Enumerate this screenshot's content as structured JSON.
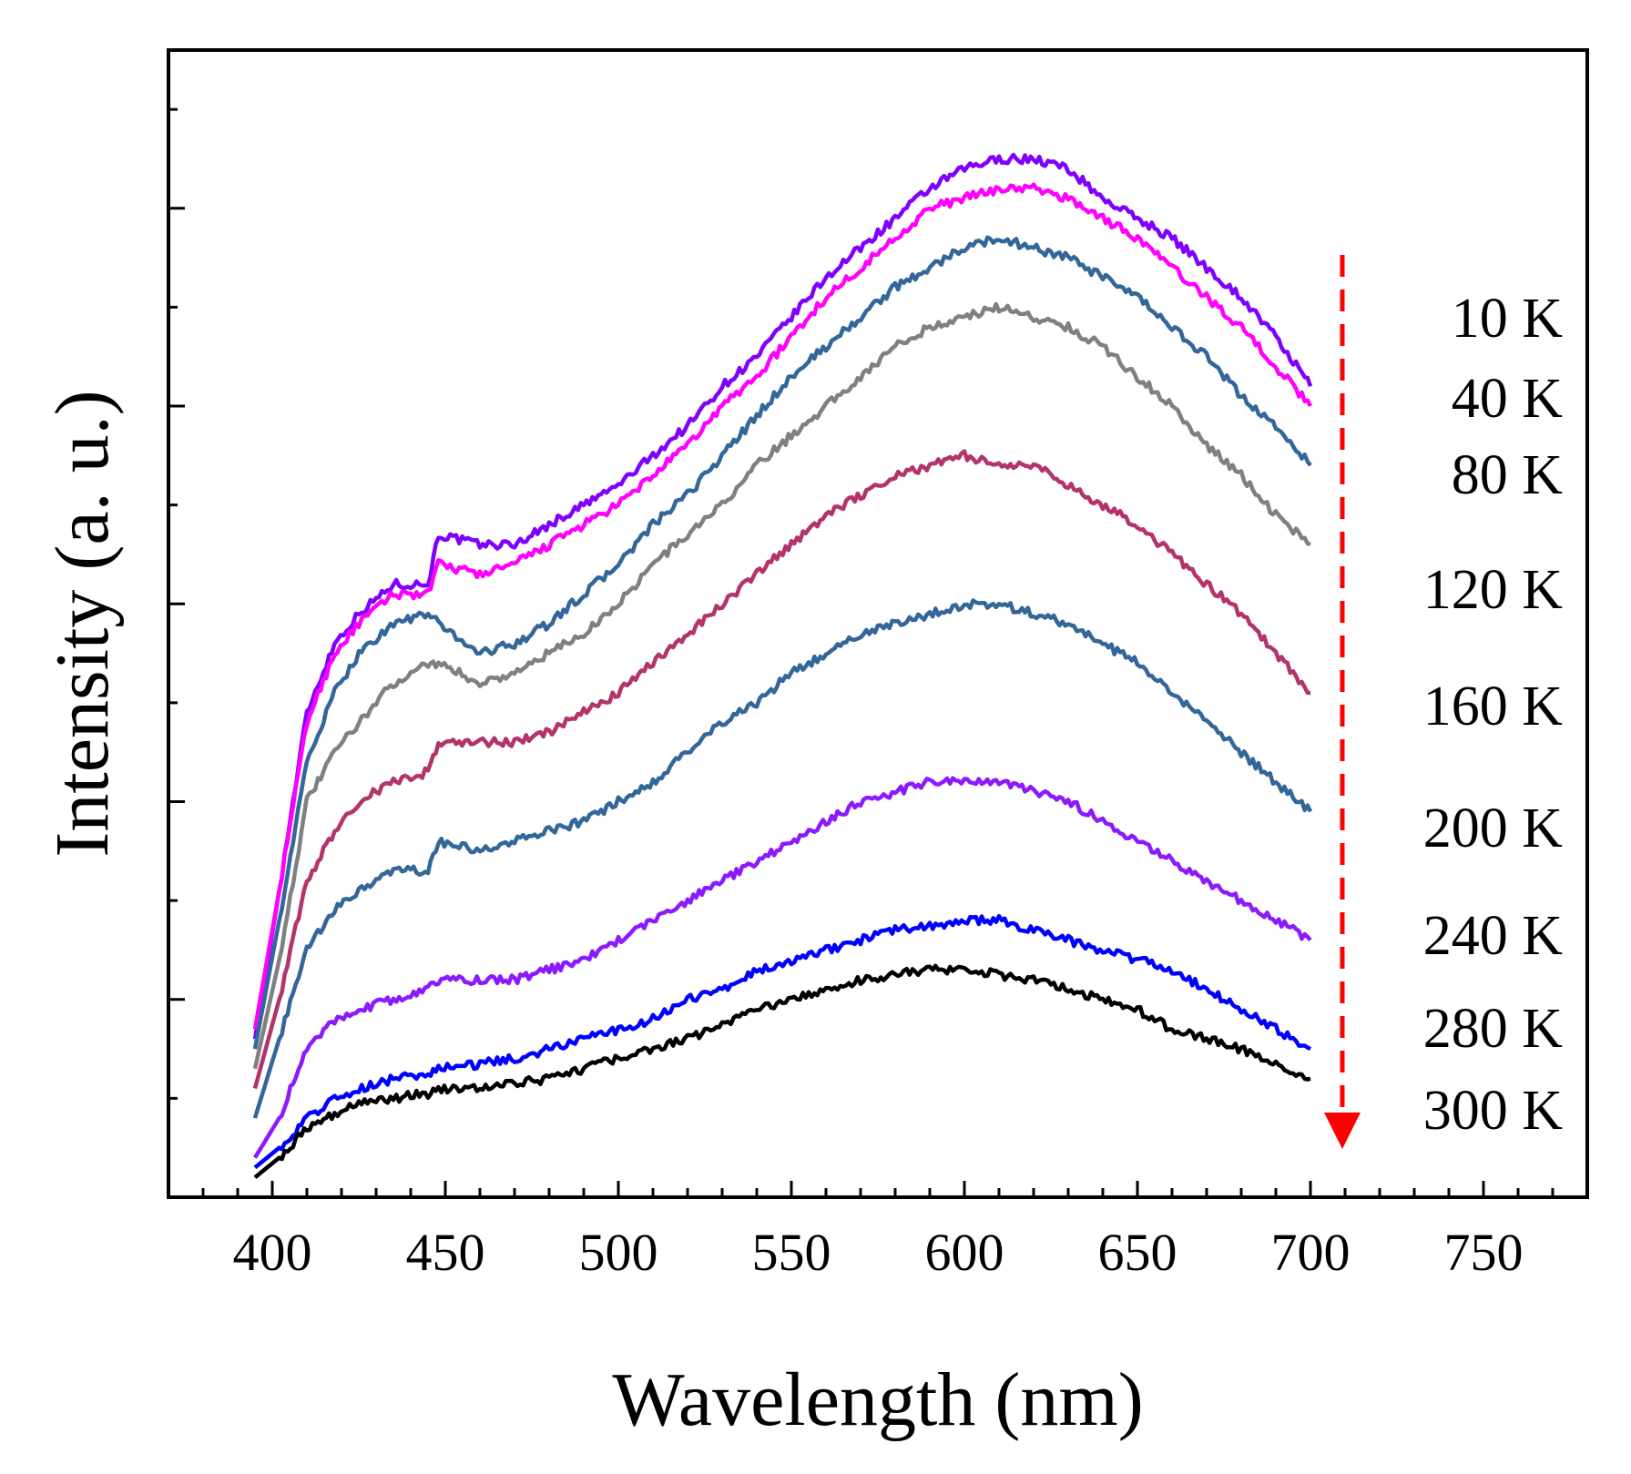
{
  "chart_data": {
    "type": "line",
    "title": "",
    "xlabel": "Wavelength (nm)",
    "ylabel": "Intensity (a. u.)",
    "xlim": [
      370,
      780
    ],
    "ylim": [
      0,
      11.6
    ],
    "x_ticks": [
      400,
      450,
      500,
      550,
      600,
      650,
      700,
      750
    ],
    "x_tick_labels": [
      "400",
      "450",
      "500",
      "550",
      "600",
      "650",
      "700",
      "750"
    ],
    "y_ticks": [
      2,
      4,
      6,
      8,
      10
    ],
    "y_minor_ticks": [
      1,
      3,
      5,
      7,
      9,
      11
    ],
    "y_tick_labels_shown": false,
    "grid": false,
    "legend": "inline labels at right, ordered top to bottom",
    "annotation": {
      "type": "dashed-arrow",
      "color": "#ff0000",
      "direction": "down",
      "meaning": "increasing temperature"
    },
    "series": [
      {
        "name": "10 K",
        "color": "#7f00ff",
        "x": [
          395,
          402,
          410,
          418,
          425,
          435,
          445,
          448,
          460,
          470,
          480,
          490,
          500,
          510,
          520,
          530,
          540,
          550,
          560,
          570,
          580,
          590,
          600,
          610,
          620,
          630,
          640,
          650,
          660,
          670,
          680,
          690,
          700
        ],
        "values": [
          1.6,
          3.1,
          4.9,
          5.6,
          5.9,
          6.2,
          6.2,
          6.7,
          6.6,
          6.6,
          6.8,
          7.0,
          7.2,
          7.5,
          7.8,
          8.2,
          8.5,
          8.9,
          9.3,
          9.6,
          9.9,
          10.2,
          10.4,
          10.5,
          10.5,
          10.4,
          10.1,
          9.9,
          9.7,
          9.4,
          9.1,
          8.7,
          8.2
        ]
      },
      {
        "name": "40 K",
        "color": "#ff00ff",
        "x": [
          395,
          402,
          410,
          418,
          425,
          435,
          445,
          448,
          460,
          470,
          480,
          490,
          500,
          510,
          520,
          530,
          540,
          550,
          560,
          570,
          580,
          590,
          600,
          610,
          620,
          630,
          640,
          650,
          660,
          670,
          680,
          690,
          700
        ],
        "values": [
          1.7,
          3.1,
          4.8,
          5.5,
          5.8,
          6.1,
          6.1,
          6.4,
          6.3,
          6.4,
          6.6,
          6.8,
          7.0,
          7.3,
          7.6,
          8.0,
          8.3,
          8.7,
          9.1,
          9.4,
          9.7,
          10.0,
          10.1,
          10.2,
          10.2,
          10.1,
          9.9,
          9.7,
          9.4,
          9.1,
          8.8,
          8.4,
          8.0
        ]
      },
      {
        "name": "80 K",
        "color": "#336699",
        "x": [
          395,
          402,
          410,
          418,
          425,
          435,
          445,
          448,
          460,
          470,
          480,
          490,
          500,
          510,
          520,
          530,
          540,
          550,
          560,
          570,
          580,
          590,
          600,
          610,
          620,
          630,
          640,
          650,
          660,
          670,
          680,
          690,
          700
        ],
        "values": [
          1.5,
          2.8,
          4.4,
          5.1,
          5.5,
          5.8,
          5.9,
          5.8,
          5.5,
          5.6,
          5.8,
          6.1,
          6.4,
          6.8,
          7.1,
          7.5,
          7.9,
          8.3,
          8.6,
          8.9,
          9.2,
          9.4,
          9.6,
          9.7,
          9.6,
          9.5,
          9.3,
          9.1,
          8.8,
          8.5,
          8.1,
          7.8,
          7.4
        ]
      },
      {
        "name": "120 K",
        "color": "#808080",
        "x": [
          395,
          402,
          410,
          418,
          425,
          435,
          445,
          448,
          460,
          470,
          480,
          490,
          500,
          510,
          520,
          530,
          540,
          550,
          560,
          570,
          580,
          590,
          600,
          610,
          620,
          630,
          640,
          650,
          660,
          670,
          680,
          690,
          700
        ],
        "values": [
          1.3,
          2.4,
          4.0,
          4.5,
          4.8,
          5.2,
          5.4,
          5.4,
          5.2,
          5.3,
          5.5,
          5.7,
          6.0,
          6.4,
          6.7,
          7.0,
          7.4,
          7.7,
          8.0,
          8.3,
          8.6,
          8.8,
          8.9,
          9.0,
          8.9,
          8.8,
          8.6,
          8.3,
          8.0,
          7.6,
          7.3,
          6.9,
          6.6
        ]
      },
      {
        "name": "160 K",
        "color": "#b3336b",
        "x": [
          395,
          402,
          410,
          418,
          425,
          435,
          445,
          448,
          460,
          470,
          480,
          490,
          500,
          510,
          520,
          530,
          540,
          550,
          560,
          570,
          580,
          590,
          600,
          610,
          620,
          630,
          640,
          650,
          660,
          670,
          680,
          690,
          700
        ],
        "values": [
          1.1,
          2.0,
          3.2,
          3.7,
          4.0,
          4.2,
          4.3,
          4.6,
          4.6,
          4.6,
          4.7,
          4.9,
          5.1,
          5.4,
          5.7,
          6.0,
          6.3,
          6.6,
          6.9,
          7.1,
          7.3,
          7.4,
          7.5,
          7.4,
          7.4,
          7.2,
          7.0,
          6.8,
          6.5,
          6.2,
          5.9,
          5.5,
          5.1
        ]
      },
      {
        "name": "200 K",
        "color": "#336699",
        "x": [
          395,
          402,
          410,
          418,
          425,
          435,
          445,
          448,
          460,
          470,
          480,
          490,
          500,
          510,
          520,
          530,
          540,
          550,
          560,
          570,
          580,
          590,
          600,
          610,
          620,
          630,
          640,
          650,
          660,
          670,
          680,
          690,
          700
        ],
        "values": [
          0.8,
          1.6,
          2.5,
          2.9,
          3.1,
          3.3,
          3.3,
          3.6,
          3.5,
          3.6,
          3.7,
          3.8,
          4.0,
          4.2,
          4.5,
          4.8,
          5.0,
          5.3,
          5.5,
          5.7,
          5.8,
          5.9,
          6.0,
          6.0,
          5.9,
          5.8,
          5.6,
          5.4,
          5.1,
          4.8,
          4.5,
          4.2,
          3.9
        ]
      },
      {
        "name": "240 K",
        "color": "#8c1aff",
        "x": [
          395,
          402,
          410,
          418,
          425,
          435,
          445,
          448,
          460,
          470,
          480,
          490,
          500,
          510,
          520,
          530,
          540,
          550,
          560,
          570,
          580,
          590,
          600,
          610,
          620,
          630,
          640,
          650,
          660,
          670,
          680,
          690,
          700
        ],
        "values": [
          0.4,
          0.8,
          1.5,
          1.8,
          1.9,
          2.0,
          2.1,
          2.2,
          2.2,
          2.2,
          2.3,
          2.4,
          2.6,
          2.8,
          3.0,
          3.2,
          3.4,
          3.6,
          3.8,
          4.0,
          4.1,
          4.2,
          4.2,
          4.2,
          4.1,
          4.0,
          3.8,
          3.6,
          3.4,
          3.2,
          3.0,
          2.8,
          2.6
        ]
      },
      {
        "name": "280 K",
        "color": "#0000ff",
        "x": [
          395,
          402,
          410,
          418,
          425,
          435,
          445,
          448,
          460,
          470,
          480,
          490,
          500,
          510,
          520,
          530,
          540,
          550,
          560,
          570,
          580,
          590,
          600,
          610,
          620,
          630,
          640,
          650,
          660,
          670,
          680,
          690,
          700
        ],
        "values": [
          0.3,
          0.5,
          0.8,
          1.0,
          1.1,
          1.2,
          1.25,
          1.3,
          1.35,
          1.4,
          1.5,
          1.6,
          1.7,
          1.8,
          2.0,
          2.1,
          2.3,
          2.4,
          2.5,
          2.6,
          2.7,
          2.75,
          2.8,
          2.8,
          2.7,
          2.6,
          2.5,
          2.4,
          2.3,
          2.1,
          1.9,
          1.7,
          1.5
        ]
      },
      {
        "name": "300 K",
        "color": "#000000",
        "x": [
          395,
          402,
          410,
          418,
          425,
          435,
          445,
          448,
          460,
          470,
          480,
          490,
          500,
          510,
          520,
          530,
          540,
          550,
          560,
          570,
          580,
          590,
          600,
          610,
          620,
          630,
          640,
          650,
          660,
          670,
          680,
          690,
          700
        ],
        "values": [
          0.2,
          0.4,
          0.7,
          0.85,
          0.95,
          1.0,
          1.05,
          1.1,
          1.1,
          1.15,
          1.2,
          1.3,
          1.4,
          1.5,
          1.6,
          1.75,
          1.9,
          2.0,
          2.1,
          2.2,
          2.25,
          2.3,
          2.3,
          2.25,
          2.2,
          2.1,
          2.0,
          1.9,
          1.7,
          1.6,
          1.5,
          1.35,
          1.2
        ]
      }
    ],
    "temperature_labels": [
      "10 K",
      "40 K",
      "80 K",
      "120 K",
      "160 K",
      "200 K",
      "240 K",
      "280 K",
      "300 K"
    ]
  }
}
